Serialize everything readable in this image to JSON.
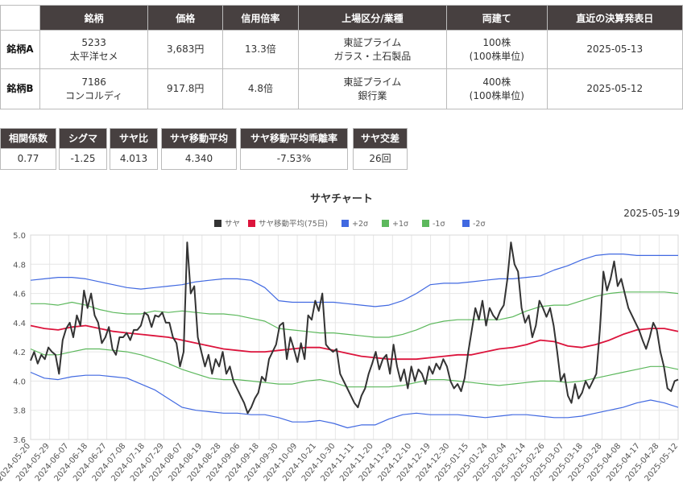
{
  "pairs_table": {
    "headers": [
      "",
      "銘柄",
      "価格",
      "信用倍率",
      "上場区分/業種",
      "両建て",
      "直近の決算発表日"
    ],
    "rows": [
      {
        "label": "銘柄A",
        "code": "5233",
        "name": "太平洋セメ",
        "price": "3,683円",
        "margin": "13.3倍",
        "market": "東証プライム",
        "sector": "ガラス・土石製品",
        "lots": "100株",
        "lots_unit": "(100株単位)",
        "earnings": "2025-05-13"
      },
      {
        "label": "銘柄B",
        "code": "7186",
        "name": "コンコルディ",
        "price": "917.8円",
        "margin": "4.8倍",
        "market": "東証プライム",
        "sector": "銀行業",
        "lots": "400株",
        "lots_unit": "(100株単位)",
        "earnings": "2025-05-12"
      }
    ]
  },
  "stats": [
    {
      "label": "相関係数",
      "value": "0.77"
    },
    {
      "label": "シグマ",
      "value": "-1.25"
    },
    {
      "label": "サヤ比",
      "value": "4.013"
    },
    {
      "label": "サヤ移動平均",
      "value": "4.340"
    },
    {
      "label": "サヤ移動平均乖離率",
      "value": "-7.53%"
    },
    {
      "label": "サヤ交差",
      "value": "26回"
    }
  ],
  "chart_data": {
    "type": "line",
    "title": "サヤチャート",
    "date_label": "2025-05-19",
    "ylim": [
      3.6,
      5.0
    ],
    "yticks": [
      "5.0",
      "4.8",
      "4.6",
      "4.4",
      "4.2",
      "4.0",
      "3.8",
      "3.6"
    ],
    "grid": true,
    "legend_position": "top-center",
    "x_tick_labels": [
      "2024-05-20",
      "2024-05-29",
      "2024-06-07",
      "2024-06-18",
      "2024-06-27",
      "2024-07-08",
      "2024-07-18",
      "2024-07-29",
      "2024-08-07",
      "2024-08-19",
      "2024-08-28",
      "2024-09-06",
      "2024-09-18",
      "2024-09-30",
      "2024-10-09",
      "2024-10-21",
      "2024-10-30",
      "2024-11-11",
      "2024-11-20",
      "2024-11-29",
      "2024-12-10",
      "2024-12-19",
      "2024-12-30",
      "2025-01-15",
      "2025-01-24",
      "2025-02-04",
      "2025-02-14",
      "2025-02-26",
      "2025-03-07",
      "2025-03-18",
      "2025-03-28",
      "2025-04-08",
      "2025-04-17",
      "2025-04-28",
      "2025-05-12"
    ],
    "series": [
      {
        "name": "サヤ",
        "color": "#333333",
        "values": [
          4.14,
          4.2,
          4.12,
          4.18,
          4.15,
          4.23,
          4.2,
          4.18,
          4.05,
          4.28,
          4.36,
          4.4,
          4.3,
          4.45,
          4.38,
          4.62,
          4.5,
          4.6,
          4.45,
          4.4,
          4.26,
          4.3,
          4.37,
          4.22,
          4.18,
          4.3,
          4.3,
          4.33,
          4.28,
          4.35,
          4.35,
          4.38,
          4.47,
          4.45,
          4.37,
          4.45,
          4.44,
          4.47,
          4.4,
          4.4,
          4.3,
          4.26,
          4.1,
          4.2,
          4.95,
          4.6,
          4.65,
          4.3,
          4.2,
          4.1,
          4.18,
          4.05,
          4.15,
          4.1,
          4.2,
          4.05,
          4.1,
          4.0,
          3.95,
          3.9,
          3.85,
          3.78,
          3.82,
          3.88,
          3.92,
          4.03,
          4.0,
          4.15,
          4.2,
          4.25,
          4.38,
          4.4,
          4.15,
          4.3,
          4.22,
          4.13,
          4.26,
          4.15,
          4.45,
          4.42,
          4.55,
          4.48,
          4.6,
          4.25,
          4.22,
          4.2,
          4.22,
          4.05,
          4.0,
          3.95,
          3.9,
          3.85,
          3.82,
          3.9,
          3.95,
          4.05,
          4.12,
          4.2,
          4.08,
          4.15,
          4.18,
          4.05,
          4.25,
          4.1,
          4.0,
          4.08,
          3.95,
          4.1,
          4.0,
          4.08,
          4.05,
          3.98,
          4.1,
          4.05,
          4.12,
          4.08,
          4.15,
          4.1,
          4.0,
          3.95,
          3.98,
          3.93,
          4.02,
          4.2,
          4.35,
          4.5,
          4.42,
          4.55,
          4.38,
          4.5,
          4.45,
          4.42,
          4.48,
          4.52,
          4.7,
          4.95,
          4.8,
          4.75,
          4.5,
          4.4,
          4.45,
          4.3,
          4.38,
          4.55,
          4.5,
          4.44,
          4.5,
          4.38,
          4.2,
          4.0,
          4.05,
          3.9,
          3.85,
          3.98,
          3.88,
          3.92,
          4.0,
          3.95,
          4.0,
          4.05,
          4.35,
          4.75,
          4.62,
          4.7,
          4.82,
          4.65,
          4.7,
          4.6,
          4.5,
          4.45,
          4.4,
          4.35,
          4.28,
          4.22,
          4.3,
          4.4,
          4.35,
          4.2,
          4.1,
          3.95,
          3.93,
          4.0,
          4.01
        ]
      },
      {
        "name": "サヤ移動平均(75日)",
        "color": "#dc143c",
        "values": [
          4.38,
          4.36,
          4.35,
          4.37,
          4.38,
          4.36,
          4.34,
          4.33,
          4.32,
          4.31,
          4.3,
          4.28,
          4.26,
          4.24,
          4.22,
          4.21,
          4.2,
          4.2,
          4.21,
          4.22,
          4.23,
          4.23,
          4.21,
          4.19,
          4.17,
          4.16,
          4.15,
          4.15,
          4.15,
          4.16,
          4.17,
          4.18,
          4.18,
          4.2,
          4.22,
          4.23,
          4.25,
          4.28,
          4.27,
          4.24,
          4.23,
          4.25,
          4.28,
          4.32,
          4.35,
          4.36,
          4.36,
          4.34
        ]
      },
      {
        "name": "+2σ",
        "color": "#4169e1",
        "values": [
          4.69,
          4.7,
          4.71,
          4.71,
          4.7,
          4.68,
          4.66,
          4.64,
          4.63,
          4.64,
          4.65,
          4.66,
          4.68,
          4.69,
          4.7,
          4.7,
          4.69,
          4.64,
          4.55,
          4.54,
          4.54,
          4.54,
          4.54,
          4.53,
          4.52,
          4.51,
          4.52,
          4.55,
          4.6,
          4.66,
          4.67,
          4.67,
          4.68,
          4.69,
          4.7,
          4.7,
          4.71,
          4.72,
          4.76,
          4.79,
          4.83,
          4.86,
          4.87,
          4.87,
          4.86,
          4.86,
          4.86,
          4.86
        ]
      },
      {
        "name": "+1σ",
        "color": "#5cb85c",
        "values": [
          4.53,
          4.53,
          4.52,
          4.54,
          4.52,
          4.49,
          4.47,
          4.46,
          4.46,
          4.48,
          4.47,
          4.48,
          4.47,
          4.46,
          4.46,
          4.45,
          4.43,
          4.41,
          4.36,
          4.35,
          4.34,
          4.33,
          4.33,
          4.32,
          4.31,
          4.3,
          4.3,
          4.32,
          4.35,
          4.39,
          4.41,
          4.42,
          4.42,
          4.42,
          4.42,
          4.44,
          4.48,
          4.51,
          4.52,
          4.52,
          4.55,
          4.58,
          4.6,
          4.61,
          4.61,
          4.61,
          4.61,
          4.6
        ]
      },
      {
        "name": "-1σ",
        "color": "#5cb85c",
        "values": [
          4.22,
          4.18,
          4.18,
          4.2,
          4.22,
          4.22,
          4.21,
          4.2,
          4.18,
          4.15,
          4.12,
          4.08,
          4.05,
          4.02,
          4.01,
          4.01,
          4.0,
          3.99,
          3.98,
          3.98,
          4.0,
          4.01,
          3.99,
          3.96,
          3.96,
          3.96,
          3.96,
          3.97,
          3.99,
          4.01,
          4.01,
          4.0,
          3.99,
          3.98,
          3.97,
          3.98,
          3.99,
          4.0,
          4.0,
          3.99,
          4.0,
          4.02,
          4.04,
          4.06,
          4.08,
          4.1,
          4.1,
          4.08
        ]
      },
      {
        "name": "-2σ",
        "color": "#4169e1",
        "values": [
          4.06,
          4.02,
          4.01,
          4.03,
          4.04,
          4.04,
          4.03,
          4.02,
          3.98,
          3.94,
          3.88,
          3.82,
          3.8,
          3.79,
          3.78,
          3.78,
          3.77,
          3.77,
          3.75,
          3.72,
          3.72,
          3.73,
          3.71,
          3.68,
          3.7,
          3.7,
          3.74,
          3.77,
          3.78,
          3.77,
          3.77,
          3.77,
          3.76,
          3.75,
          3.76,
          3.77,
          3.77,
          3.76,
          3.75,
          3.75,
          3.76,
          3.78,
          3.8,
          3.82,
          3.85,
          3.87,
          3.85,
          3.82
        ]
      }
    ]
  }
}
